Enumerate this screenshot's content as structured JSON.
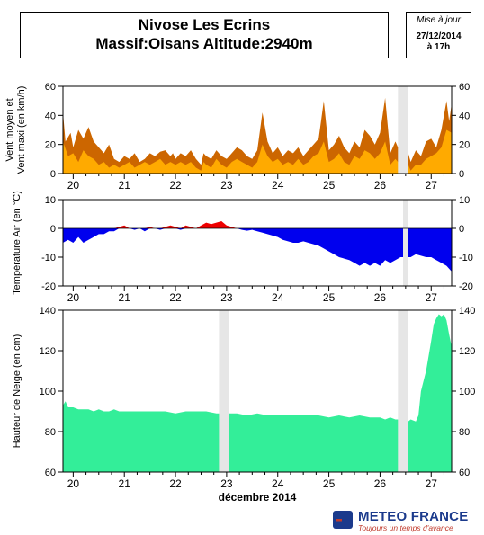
{
  "header": {
    "title_line1": "Nivose Les Ecrins",
    "title_line2": "Massif:Oisans Altitude:2940m",
    "update_label": "Mise à jour",
    "update_date": "27/12/2014",
    "update_time": "à 17h"
  },
  "footer": {
    "month_label": "décembre 2014",
    "logo_name": "METEO FRANCE",
    "logo_tagline": "Toujours un temps d'avance"
  },
  "colors": {
    "wind_max": "#cc6600",
    "wind_mean": "#ffaa00",
    "temp_positive": "#ee0000",
    "temp_negative": "#0000ee",
    "snow": "#33ee99",
    "gap": "#e6e6e6",
    "logo_blue": "#1b3a8c",
    "logo_red": "#c0392b"
  },
  "chart_data": [
    {
      "type": "area",
      "panel": "wind",
      "ylabel": "Vent moyen et Vent maxi (en km/h)",
      "ylim": [
        0,
        60
      ],
      "yticks": [
        0,
        20,
        40,
        60
      ],
      "x_day_labels": [
        "20",
        "21",
        "22",
        "23",
        "24",
        "25",
        "26",
        "27"
      ],
      "x_range_days": [
        19.8,
        27.4
      ],
      "gaps": [
        [
          26.35,
          26.55
        ]
      ],
      "series": [
        {
          "color": "#cc6600",
          "x": [
            19.8,
            19.85,
            19.95,
            20.0,
            20.1,
            20.2,
            20.3,
            20.4,
            20.5,
            20.6,
            20.7,
            20.8,
            20.9,
            21.0,
            21.1,
            21.2,
            21.3,
            21.4,
            21.5,
            21.6,
            21.7,
            21.8,
            21.9,
            21.95,
            22.0,
            22.1,
            22.2,
            22.3,
            22.4,
            22.5,
            22.55,
            22.6,
            22.7,
            22.8,
            22.9,
            23.0,
            23.1,
            23.2,
            23.3,
            23.4,
            23.5,
            23.6,
            23.7,
            23.8,
            23.9,
            24.0,
            24.1,
            24.2,
            24.3,
            24.4,
            24.5,
            24.6,
            24.7,
            24.8,
            24.9,
            25.0,
            25.1,
            25.2,
            25.3,
            25.4,
            25.5,
            25.6,
            25.7,
            25.8,
            25.9,
            26.0,
            26.1,
            26.2,
            26.3,
            26.35,
            26.55,
            26.6,
            26.7,
            26.8,
            26.9,
            27.0,
            27.1,
            27.2,
            27.3,
            27.35,
            27.4
          ],
          "values": [
            42,
            22,
            28,
            18,
            30,
            24,
            32,
            22,
            18,
            14,
            20,
            10,
            8,
            12,
            10,
            14,
            8,
            10,
            14,
            12,
            15,
            16,
            12,
            14,
            10,
            14,
            12,
            16,
            10,
            6,
            14,
            12,
            10,
            16,
            12,
            10,
            14,
            18,
            16,
            12,
            10,
            16,
            42,
            22,
            14,
            18,
            12,
            16,
            14,
            18,
            12,
            16,
            20,
            24,
            50,
            16,
            20,
            26,
            18,
            14,
            22,
            18,
            30,
            26,
            20,
            28,
            52,
            14,
            22,
            18,
            14,
            8,
            16,
            12,
            22,
            24,
            18,
            30,
            50,
            36,
            48
          ]
        },
        {
          "color": "#ffaa00",
          "x": [
            19.8,
            19.9,
            20.0,
            20.1,
            20.2,
            20.3,
            20.4,
            20.5,
            20.6,
            20.7,
            20.8,
            20.9,
            21.0,
            21.1,
            21.2,
            21.3,
            21.4,
            21.5,
            21.6,
            21.7,
            21.8,
            21.9,
            22.0,
            22.1,
            22.2,
            22.3,
            22.4,
            22.5,
            22.55,
            22.6,
            22.7,
            22.8,
            22.9,
            23.0,
            23.1,
            23.2,
            23.3,
            23.4,
            23.5,
            23.6,
            23.7,
            23.8,
            23.9,
            24.0,
            24.1,
            24.2,
            24.3,
            24.4,
            24.5,
            24.6,
            24.7,
            24.8,
            24.9,
            25.0,
            25.1,
            25.2,
            25.3,
            25.4,
            25.5,
            25.6,
            25.7,
            25.8,
            25.9,
            26.0,
            26.1,
            26.2,
            26.3,
            26.35,
            26.55,
            26.6,
            26.7,
            26.8,
            26.9,
            27.0,
            27.1,
            27.2,
            27.3,
            27.4
          ],
          "values": [
            22,
            12,
            14,
            8,
            16,
            12,
            10,
            6,
            8,
            4,
            6,
            4,
            6,
            8,
            4,
            6,
            8,
            6,
            8,
            10,
            6,
            8,
            6,
            8,
            6,
            8,
            4,
            2,
            8,
            6,
            4,
            10,
            6,
            4,
            8,
            10,
            8,
            6,
            4,
            8,
            20,
            12,
            8,
            10,
            6,
            8,
            6,
            10,
            6,
            8,
            12,
            14,
            22,
            8,
            10,
            14,
            8,
            6,
            12,
            10,
            16,
            14,
            10,
            14,
            22,
            6,
            10,
            8,
            6,
            2,
            6,
            6,
            10,
            12,
            14,
            18,
            30,
            28
          ]
        }
      ]
    },
    {
      "type": "area",
      "panel": "temperature",
      "ylabel": "Température Air (en °C)",
      "ylim": [
        -20,
        10
      ],
      "yticks": [
        -20,
        -10,
        0,
        10
      ],
      "x_day_labels": [
        "20",
        "21",
        "22",
        "23",
        "24",
        "25",
        "26",
        "27"
      ],
      "x_range_days": [
        19.8,
        27.4
      ],
      "gaps": [
        [
          26.45,
          26.55
        ]
      ],
      "series": [
        {
          "x": [
            19.8,
            19.9,
            20.0,
            20.1,
            20.2,
            20.3,
            20.4,
            20.5,
            20.6,
            20.7,
            20.8,
            20.9,
            21.0,
            21.1,
            21.2,
            21.3,
            21.4,
            21.5,
            21.6,
            21.7,
            21.8,
            21.9,
            22.0,
            22.1,
            22.2,
            22.3,
            22.4,
            22.5,
            22.6,
            22.7,
            22.8,
            22.9,
            23.0,
            23.1,
            23.2,
            23.3,
            23.4,
            23.5,
            23.6,
            23.7,
            23.8,
            23.9,
            24.0,
            24.1,
            24.2,
            24.3,
            24.4,
            24.5,
            24.6,
            24.7,
            24.8,
            24.9,
            25.0,
            25.1,
            25.2,
            25.3,
            25.4,
            25.5,
            25.6,
            25.7,
            25.8,
            25.9,
            26.0,
            26.1,
            26.2,
            26.3,
            26.4,
            26.45,
            26.55,
            26.6,
            26.7,
            26.8,
            26.9,
            27.0,
            27.1,
            27.2,
            27.3,
            27.4
          ],
          "values": [
            -5,
            -4,
            -5,
            -3,
            -5,
            -4,
            -3,
            -2,
            -2,
            -1,
            -1,
            0.5,
            1,
            0,
            -0.5,
            0,
            -1,
            0.5,
            0,
            -0.5,
            0.5,
            1,
            0.5,
            -0.5,
            1,
            0.5,
            0,
            1,
            2,
            1.5,
            2,
            2.5,
            1,
            0.5,
            0,
            -0.5,
            -0.8,
            -0.5,
            -1,
            -1.5,
            -2,
            -2.5,
            -3,
            -4,
            -4.5,
            -5,
            -5,
            -4.5,
            -5,
            -5.5,
            -6,
            -7,
            -8,
            -9,
            -10,
            -10.5,
            -11,
            -12,
            -13,
            -12,
            -13,
            -12,
            -13,
            -11,
            -12,
            -11,
            -10,
            -10,
            -10,
            -10,
            -9,
            -9.5,
            -10,
            -10,
            -11,
            -12,
            -13,
            -15
          ]
        }
      ]
    },
    {
      "type": "area",
      "panel": "snow",
      "ylabel": "Hauteur de Neige (en cm)",
      "ylim": [
        60,
        140
      ],
      "yticks": [
        60,
        80,
        100,
        120,
        140
      ],
      "x_day_labels": [
        "20",
        "21",
        "22",
        "23",
        "24",
        "25",
        "26",
        "27"
      ],
      "x_range_days": [
        19.8,
        27.4
      ],
      "gaps": [
        [
          22.85,
          23.05
        ],
        [
          26.35,
          26.55
        ]
      ],
      "series": [
        {
          "color": "#33ee99",
          "x": [
            19.8,
            19.85,
            19.9,
            20.0,
            20.1,
            20.2,
            20.3,
            20.4,
            20.5,
            20.6,
            20.7,
            20.8,
            20.9,
            21.0,
            21.2,
            21.4,
            21.6,
            21.8,
            22.0,
            22.2,
            22.4,
            22.6,
            22.8,
            22.85,
            23.05,
            23.2,
            23.4,
            23.6,
            23.8,
            24.0,
            24.2,
            24.4,
            24.6,
            24.8,
            25.0,
            25.2,
            25.4,
            25.6,
            25.8,
            26.0,
            26.1,
            26.2,
            26.3,
            26.35,
            26.55,
            26.6,
            26.7,
            26.75,
            26.8,
            26.9,
            27.0,
            27.05,
            27.1,
            27.15,
            27.2,
            27.25,
            27.3,
            27.35,
            27.4
          ],
          "values": [
            93,
            95,
            92,
            92,
            91,
            91,
            91,
            90,
            91,
            90,
            90,
            91,
            90,
            90,
            90,
            90,
            90,
            90,
            89,
            90,
            90,
            90,
            89,
            89,
            89,
            89,
            88,
            89,
            88,
            88,
            88,
            88,
            88,
            88,
            87,
            88,
            87,
            88,
            87,
            87,
            86,
            87,
            86,
            86,
            85,
            86,
            85,
            88,
            100,
            110,
            125,
            133,
            136,
            138,
            137,
            138,
            135,
            128,
            122
          ]
        }
      ]
    }
  ]
}
